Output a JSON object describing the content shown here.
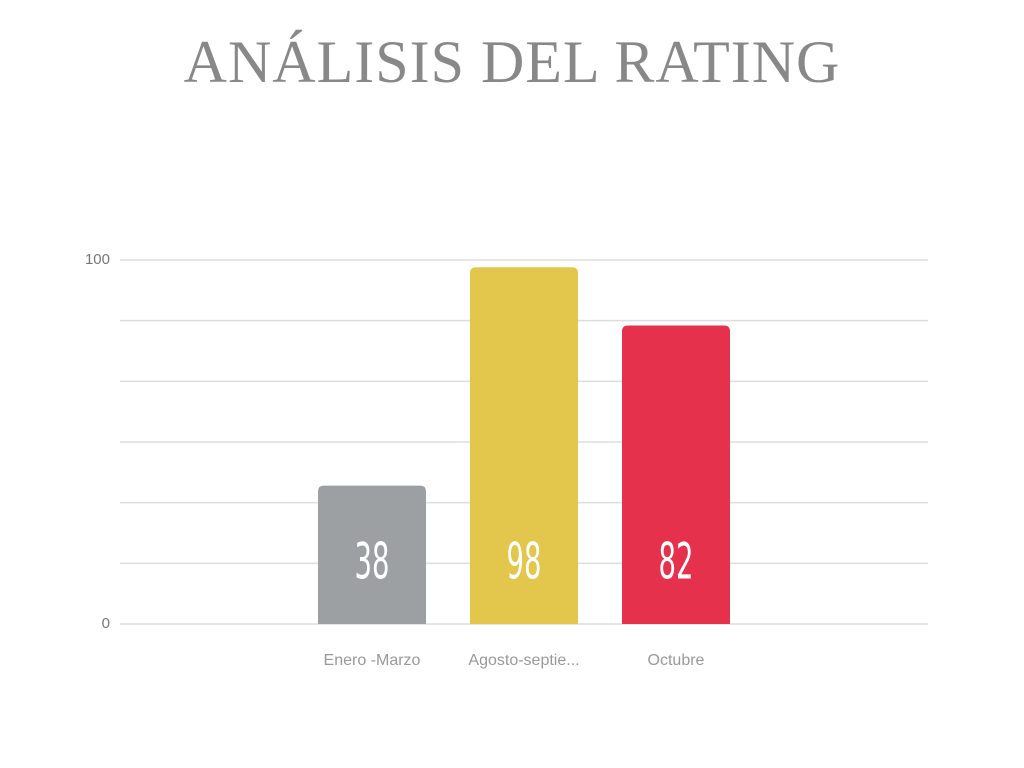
{
  "chart_data": {
    "type": "bar",
    "title": "ANÁLISIS DEL RATING",
    "categories": [
      "Enero -Marzo",
      "Agosto-septie...",
      "Octubre"
    ],
    "values": [
      38,
      98,
      82
    ],
    "colors": [
      "#9ca0a3",
      "#e3c64c",
      "#e5314c"
    ],
    "ylim": [
      0,
      100
    ],
    "yticks": [
      0,
      100
    ],
    "minor_yticks": [
      16.67,
      33.33,
      50,
      66.67,
      83.33
    ],
    "grid": true
  }
}
